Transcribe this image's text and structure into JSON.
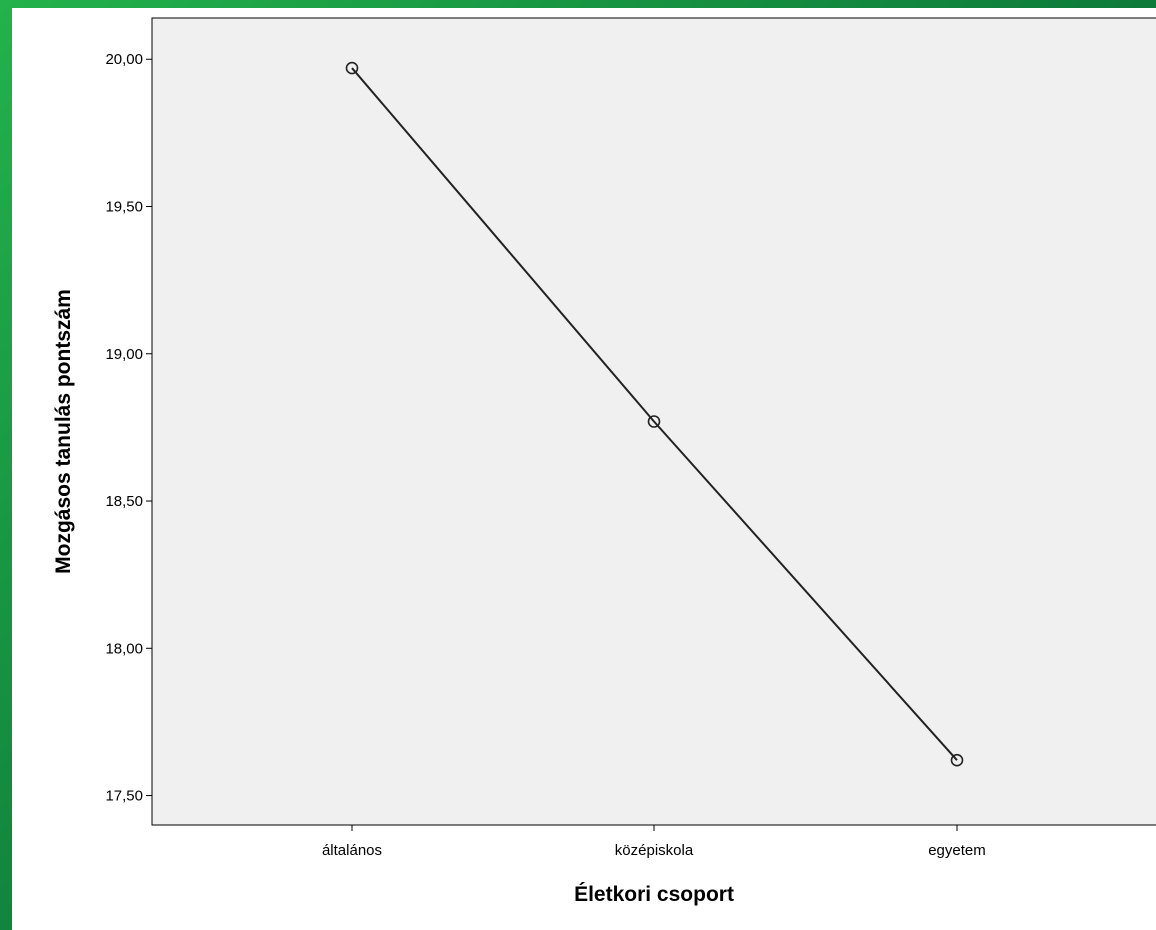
{
  "chart_data": {
    "type": "line",
    "title": "",
    "xlabel": "Életkori csoport",
    "ylabel": "Mozgásos tanulás pontszám",
    "categories": [
      "általános",
      "középiskola",
      "egyetem"
    ],
    "series": [
      {
        "values": [
          19.97,
          18.77,
          17.62
        ]
      }
    ],
    "ylim": [
      17.4,
      20.14
    ],
    "yticks": [
      "17,50",
      "18,00",
      "18,50",
      "19,00",
      "19,50",
      "20,00"
    ],
    "ytick_values": [
      17.5,
      18.0,
      18.5,
      19.0,
      19.5,
      20.0
    ],
    "grid": false,
    "legend": "none",
    "markers": "open-circle",
    "colors": {
      "plot_background": "#f0f0f0",
      "line": "#222222",
      "marker_stroke": "#222222"
    }
  }
}
